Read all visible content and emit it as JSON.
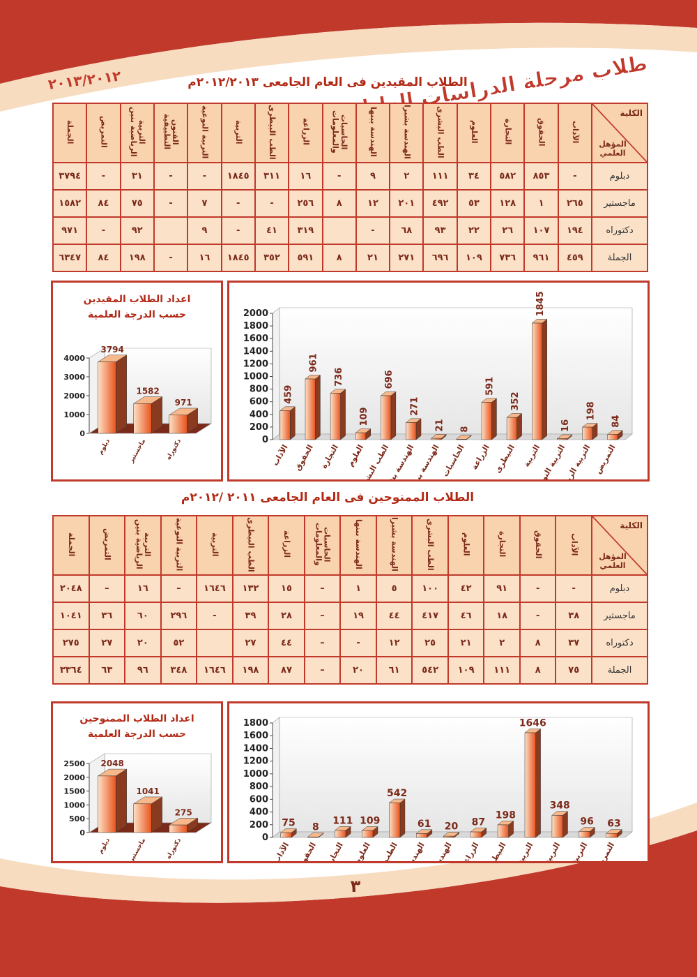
{
  "header": {
    "title": "طلاب مرحلة الدراسات العليا",
    "year": "٢٠١٣/٢٠١٢"
  },
  "page_number": "٣",
  "sections": [
    {
      "title": "الطلاب المقيدين فى العام الجامعى ٢٠١٢/٢٠١٣م",
      "table": {
        "corner": {
          "top": "الكلية",
          "bottom": "المؤهل العلمي"
        },
        "columns": [
          "الآداب",
          "الحقوق",
          "التجارة",
          "العلوم",
          "الطب البشرى",
          "الهندسة بشبرا",
          "الهندسة ببنها",
          "الحاسبات والمعلومات",
          "الزراعة",
          "الطب البيطرى",
          "التربية",
          "التربية النوعية",
          "الفنون التطبيقية",
          "التربية الرياضية بنين",
          "التمريض",
          "الجملة"
        ],
        "rows": [
          [
            "دبلوم",
            "-",
            "٨٥٣",
            "٥٨٢",
            "٣٤",
            "١١١",
            "٢",
            "٩",
            "-",
            "١٦",
            "٣١١",
            "١٨٤٥",
            "-",
            "-",
            "٣١",
            "-",
            "٣٧٩٤"
          ],
          [
            "ماجستير",
            "٢٦٥",
            "١",
            "١٢٨",
            "٥٣",
            "٤٩٢",
            "٢٠١",
            "١٢",
            "٨",
            "٢٥٦",
            "-",
            "-",
            "٧",
            "-",
            "٧٥",
            "٨٤",
            "١٥٨٢"
          ],
          [
            "دكتوراه",
            "١٩٤",
            "١٠٧",
            "٢٦",
            "٢٢",
            "٩٣",
            "٦٨",
            "-",
            null,
            "٣١٩",
            "٤١",
            "-",
            "٩",
            null,
            "٩٢",
            "-",
            "٩٧١"
          ],
          [
            "الجملة",
            "٤٥٩",
            "٩٦١",
            "٧٣٦",
            "١٠٩",
            "٦٩٦",
            "٢٧١",
            "٢١",
            "٨",
            "٥٩١",
            "٣٥٢",
            "١٨٤٥",
            "١٦",
            "-",
            "١٩٨",
            "٨٤",
            "٦٣٤٧"
          ]
        ]
      }
    },
    {
      "title": "الطلاب الممنوحين فى العام الجامعى ٢٠١١ /٢٠١٢م",
      "table": {
        "corner": {
          "top": "الكلية",
          "bottom": "المؤهل العلمي"
        },
        "columns": [
          "الآداب",
          "الحقوق",
          "التجارة",
          "العلوم",
          "الطب البشرى",
          "الهندسة بشبرا",
          "الهندسة ببنها",
          "الحاسبات والمعلومات",
          "الزراعة",
          "الطب البيطرى",
          "التربية",
          "التربية النوعية",
          "التربية الرياضية بنين",
          "التمريض",
          "الجملة"
        ],
        "rows": [
          [
            "دبلوم",
            "-",
            "-",
            "٩١",
            "٤٢",
            "١٠٠",
            "٥",
            "١",
            "–",
            "١٥",
            "١٣٢",
            "١٦٤٦",
            "–",
            "١٦",
            "–",
            "٢٠٤٨"
          ],
          [
            "ماجستير",
            "٣٨",
            "-",
            "١٨",
            "٤٦",
            "٤١٧",
            "٤٤",
            "١٩",
            "–",
            "٢٨",
            "٣٩",
            "-",
            "٢٩٦",
            "٦٠",
            "٣٦",
            "١٠٤١"
          ],
          [
            "دكتوراه",
            "٣٧",
            "٨",
            "٢",
            "٢١",
            "٢٥",
            "١٢",
            "-",
            "–",
            "٤٤",
            "٢٧",
            null,
            "٥٢",
            "٢٠",
            "٢٧",
            "٢٧٥"
          ],
          [
            "الجملة",
            "٧٥",
            "٨",
            "١١١",
            "١٠٩",
            "٥٤٢",
            "٦١",
            "٢٠",
            "–",
            "٨٧",
            "١٩٨",
            "١٦٤٦",
            "٣٤٨",
            "٩٦",
            "٦٣",
            "٣٣٦٤"
          ]
        ]
      }
    }
  ],
  "chart_data": [
    {
      "type": "bar",
      "color": "#e8541e",
      "categories": [
        "الآداب",
        "الحقوق",
        "التجارة",
        "العلوم",
        "الطب البشرى",
        "الهندسة بشبرا",
        "الهندسة ببنها",
        "الحاسبات",
        "الزراعة",
        "البيطرى",
        "التربية",
        "التربية النوعية",
        "التربية الرياضية",
        "التمريض"
      ],
      "values": [
        459,
        961,
        736,
        109,
        696,
        271,
        21,
        8,
        591,
        352,
        1845,
        16,
        198,
        84
      ],
      "ylim": [
        0,
        2000
      ],
      "yticks": [
        0,
        200,
        400,
        600,
        800,
        1000,
        1200,
        1400,
        1600,
        1800,
        2000
      ]
    },
    {
      "type": "bar",
      "color": "#e8541e",
      "title": "اعداد الطلاب المقيدين",
      "subtitle": "حسب الدرجة العلمية",
      "categories": [
        "دبلوم",
        "ماجستير",
        "دكتوراه"
      ],
      "values": [
        3794,
        1582,
        971
      ],
      "ylim": [
        0,
        4000
      ],
      "yticks": [
        0,
        1000,
        2000,
        3000,
        4000
      ]
    },
    {
      "type": "bar",
      "color": "#e8541e",
      "categories": [
        "الآداب",
        "الحقوق",
        "التجارة",
        "العلوم",
        "الطب البشرى",
        "الهندسة بشبرا",
        "الهندسة ببنها",
        "الزراعة",
        "البيطرى",
        "التربية",
        "التربية النوعية",
        "التربية الرياضية",
        "التمريض"
      ],
      "values": [
        75,
        8,
        111,
        109,
        542,
        61,
        20,
        87,
        198,
        1646,
        348,
        96,
        63
      ],
      "ylim": [
        0,
        1800
      ],
      "yticks": [
        0,
        200,
        400,
        600,
        800,
        1000,
        1200,
        1400,
        1600,
        1800
      ]
    },
    {
      "type": "bar",
      "color": "#e8541e",
      "title": "اعداد الطلاب الممنوحين",
      "subtitle": "حسب الدرجة العلمية",
      "categories": [
        "دبلوم",
        "ماجستير",
        "دكتوراه"
      ],
      "values": [
        2048,
        1041,
        275
      ],
      "ylim": [
        0,
        2500
      ],
      "yticks": [
        0,
        500,
        1000,
        1500,
        2000,
        2500
      ]
    }
  ]
}
